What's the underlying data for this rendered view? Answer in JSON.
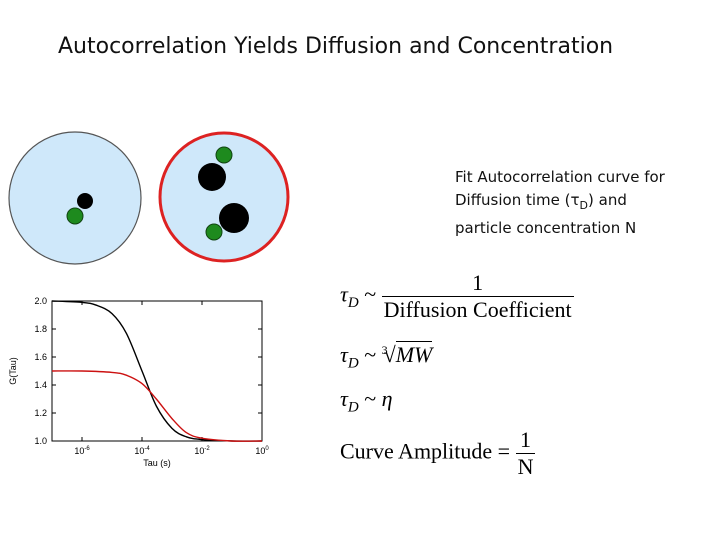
{
  "title": "Autocorrelation Yields Diffusion and Concentration",
  "note": {
    "line1": "Fit Autocorrelation curve for",
    "line2_pre": "Diffusion time (",
    "tau_symbol": "τ",
    "tau_sub": "D",
    "line2_post": ") and",
    "line3": "particle concentration N"
  },
  "colors": {
    "circle_fill": "#cfe8fa",
    "circle_left_border": "#555555",
    "circle_right_border": "#dd2222",
    "green_particle": "#1e8a1e",
    "black_particle": "#000000",
    "curve_black": "#000000",
    "curve_red": "#cc1111"
  },
  "equations": {
    "eq1": {
      "lhs": "τ",
      "sub": "D",
      "rel": "~",
      "numerator": "1",
      "denominator": "Diffusion Coefficient"
    },
    "eq2": {
      "lhs": "τ",
      "sub": "D",
      "rel": "~",
      "root_index": "3",
      "radicand": "MW"
    },
    "eq3": {
      "lhs": "τ",
      "sub": "D",
      "rel": "~",
      "rhs": "η"
    },
    "eq4": {
      "lhs": "Curve Amplitude",
      "rel": "=",
      "numerator": "1",
      "denominator": "N"
    }
  },
  "chart_data": {
    "type": "line",
    "xlabel": "Tau (s)",
    "ylabel": "G(Tau)",
    "x_scale": "log",
    "xlim": [
      1e-07,
      1
    ],
    "ylim": [
      1.0,
      2.0
    ],
    "x_ticks": [
      {
        "value": 1e-06,
        "base": "10",
        "exp": "-6"
      },
      {
        "value": 0.0001,
        "base": "10",
        "exp": "-4"
      },
      {
        "value": 0.01,
        "base": "10",
        "exp": "-2"
      },
      {
        "value": 1,
        "base": "10",
        "exp": "0"
      }
    ],
    "y_ticks": [
      "1.0",
      "1.2",
      "1.4",
      "1.6",
      "1.8",
      "2.0"
    ],
    "series": [
      {
        "color": "black",
        "x": [
          1e-07,
          1e-06,
          3e-06,
          1e-05,
          3e-05,
          0.0001,
          0.0003,
          0.001,
          0.003,
          0.01,
          0.1,
          1
        ],
        "y": [
          2.0,
          1.99,
          1.97,
          1.91,
          1.77,
          1.5,
          1.25,
          1.09,
          1.03,
          1.01,
          1.0,
          1.0
        ]
      },
      {
        "color": "red",
        "x": [
          1e-07,
          1e-06,
          1e-05,
          3e-05,
          0.0001,
          0.0003,
          0.001,
          0.003,
          0.01,
          0.1,
          1
        ],
        "y": [
          1.5,
          1.5,
          1.49,
          1.47,
          1.41,
          1.3,
          1.16,
          1.06,
          1.02,
          1.0,
          1.0
        ]
      }
    ]
  }
}
